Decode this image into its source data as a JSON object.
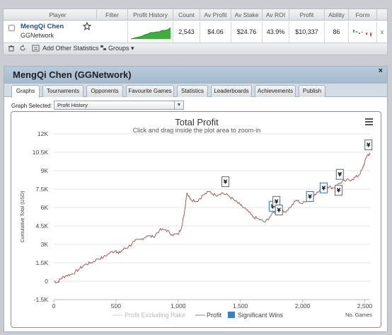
{
  "stats_table": {
    "headers": [
      "Player",
      "Filter",
      "Profit History",
      "Count",
      "Av Profit",
      "Av Stake",
      "Av ROI",
      "Profit",
      "Ability",
      "Form"
    ],
    "row": {
      "player_name": "MengQi Chen",
      "player_site": "GGNetwork",
      "count": "2,543",
      "av_profit": "$4.06",
      "av_stake": "$24.76",
      "av_roi": "43.9%",
      "profit": "$10,337",
      "ability": "86",
      "remove": "x"
    },
    "footer": {
      "add_other_statistics": "Add Other Statistics",
      "groups": "Groups"
    }
  },
  "panel": {
    "title": "MengQi Chen (GGNetwork)",
    "close": "×",
    "tabs": [
      "Graphs",
      "Tournaments",
      "Opponents",
      "Favourite Games",
      "Statistics",
      "Leaderboards",
      "Achievements",
      "Publish"
    ],
    "active_tab": "Graphs",
    "graph_selected_label": "Graph Selected:",
    "graph_selected_value": "Profit History"
  },
  "chart_data": {
    "type": "line",
    "title": "Total Profit",
    "subtitle": "Click and drag inside the plot area to zoom-in",
    "xlabel": "No. Games",
    "ylabel": "Cumulative Total (USD)",
    "xlim": [
      0,
      2543
    ],
    "ylim": [
      -1500,
      12000
    ],
    "x_ticks": [
      0,
      500,
      1000,
      1500,
      2000,
      2500
    ],
    "x_tick_labels": [
      "0",
      "500",
      "1,000",
      "1,500",
      "2,000",
      "2,500"
    ],
    "y_ticks": [
      -1500,
      0,
      1500,
      3000,
      4500,
      6000,
      7500,
      9000,
      10500,
      12000
    ],
    "y_tick_labels": [
      "-1.5K",
      "0",
      "1.5K",
      "3K",
      "4.5K",
      "6K",
      "7.5K",
      "9K",
      "10.5K",
      "12K"
    ],
    "legend": [
      "Profit Excluding Rake",
      "Profit",
      "Significant Wins"
    ],
    "legend_position": "bottom",
    "series_color": "#a85a5a",
    "series": [
      {
        "name": "Profit",
        "x": [
          0,
          30,
          60,
          100,
          150,
          200,
          250,
          300,
          350,
          400,
          450,
          500,
          520,
          560,
          600,
          650,
          700,
          750,
          800,
          850,
          900,
          950,
          1000,
          1030,
          1050,
          1070,
          1100,
          1150,
          1200,
          1250,
          1300,
          1350,
          1400,
          1450,
          1500,
          1550,
          1600,
          1650,
          1700,
          1750,
          1800,
          1850,
          1900,
          1950,
          2000,
          2050,
          2100,
          2150,
          2200,
          2250,
          2300,
          2350,
          2400,
          2450,
          2480,
          2500,
          2520,
          2543
        ],
        "y": [
          0,
          -100,
          250,
          450,
          600,
          950,
          1350,
          1500,
          1800,
          1950,
          2300,
          2500,
          2250,
          2600,
          2800,
          3250,
          3400,
          3700,
          3600,
          4150,
          4200,
          3800,
          3800,
          4500,
          5600,
          7200,
          6700,
          6500,
          7000,
          7300,
          7000,
          7200,
          7000,
          6600,
          6200,
          5800,
          5250,
          5050,
          4800,
          5400,
          5900,
          5600,
          6000,
          6600,
          6300,
          6800,
          7100,
          7400,
          7700,
          7600,
          8000,
          8200,
          8300,
          8600,
          9100,
          9700,
          10300,
          10337
        ]
      }
    ],
    "significant_wins": [
      {
        "x": 1380,
        "y": 8100
      },
      {
        "x": 1760,
        "y": 6100
      },
      {
        "x": 1790,
        "y": 6500
      },
      {
        "x": 1810,
        "y": 5800
      },
      {
        "x": 2060,
        "y": 6900
      },
      {
        "x": 2170,
        "y": 7600
      },
      {
        "x": 2290,
        "y": 7400
      },
      {
        "x": 2300,
        "y": 8700
      },
      {
        "x": 2530,
        "y": 11100
      }
    ],
    "grid": true
  }
}
